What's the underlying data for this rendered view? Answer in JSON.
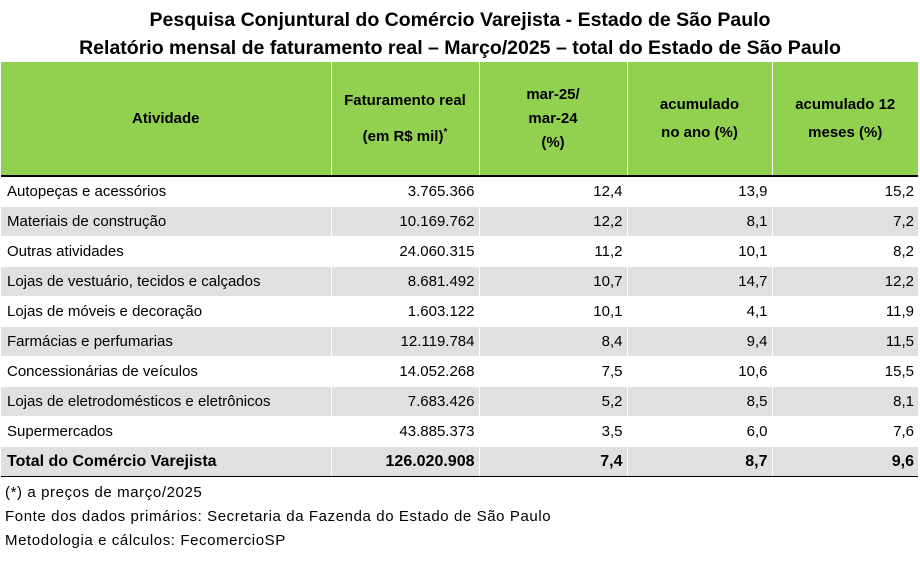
{
  "title": {
    "line1": "Pesquisa Conjuntural do Comércio Varejista - Estado de São Paulo",
    "line2": "Relatório mensal de faturamento real – Março/2025 – total do Estado de São Paulo"
  },
  "table": {
    "headers": {
      "atividade": "Atividade",
      "faturamento_l1": "Faturamento real",
      "faturamento_l2": "(em R$ mil)",
      "faturamento_mark": "*",
      "mensal_l1": "mar-25/",
      "mensal_l2": "mar-24",
      "mensal_l3": "(%)",
      "acum_ano_l1": "acumulado",
      "acum_ano_l2": "no ano (%)",
      "acum_12_l1": "acumulado 12",
      "acum_12_l2": "meses (%)"
    },
    "rows": [
      {
        "atividade": "Autopeças e acessórios",
        "faturamento": "3.765.366",
        "mensal": "12,4",
        "acum_ano": "13,9",
        "acum_12": "15,2"
      },
      {
        "atividade": "Materiais de construção",
        "faturamento": "10.169.762",
        "mensal": "12,2",
        "acum_ano": "8,1",
        "acum_12": "7,2"
      },
      {
        "atividade": "Outras atividades",
        "faturamento": "24.060.315",
        "mensal": "11,2",
        "acum_ano": "10,1",
        "acum_12": "8,2"
      },
      {
        "atividade": "Lojas de vestuário, tecidos e calçados",
        "faturamento": "8.681.492",
        "mensal": "10,7",
        "acum_ano": "14,7",
        "acum_12": "12,2"
      },
      {
        "atividade": "Lojas de móveis e decoração",
        "faturamento": "1.603.122",
        "mensal": "10,1",
        "acum_ano": "4,1",
        "acum_12": "11,9"
      },
      {
        "atividade": "Farmácias e perfumarias",
        "faturamento": "12.119.784",
        "mensal": "8,4",
        "acum_ano": "9,4",
        "acum_12": "11,5"
      },
      {
        "atividade": "Concessionárias de veículos",
        "faturamento": "14.052.268",
        "mensal": "7,5",
        "acum_ano": "10,6",
        "acum_12": "15,5"
      },
      {
        "atividade": "Lojas de eletrodomésticos e eletrônicos",
        "faturamento": "7.683.426",
        "mensal": "5,2",
        "acum_ano": "8,5",
        "acum_12": "8,1"
      },
      {
        "atividade": "Supermercados",
        "faturamento": "43.885.373",
        "mensal": "3,5",
        "acum_ano": "6,0",
        "acum_12": "7,6"
      }
    ],
    "total": {
      "atividade": "Total do Comércio Varejista",
      "faturamento": "126.020.908",
      "mensal": "7,4",
      "acum_ano": "8,7",
      "acum_12": "9,6"
    }
  },
  "notes": {
    "footnote": "(*) a preços de março/2025",
    "source": "Fonte dos dados primários: Secretaria da Fazenda do Estado de São Paulo",
    "method": "Metodologia e cálculos: FecomercioSP"
  },
  "colors": {
    "header_green": "#92d050",
    "row_gray": "#e0e0e0"
  }
}
